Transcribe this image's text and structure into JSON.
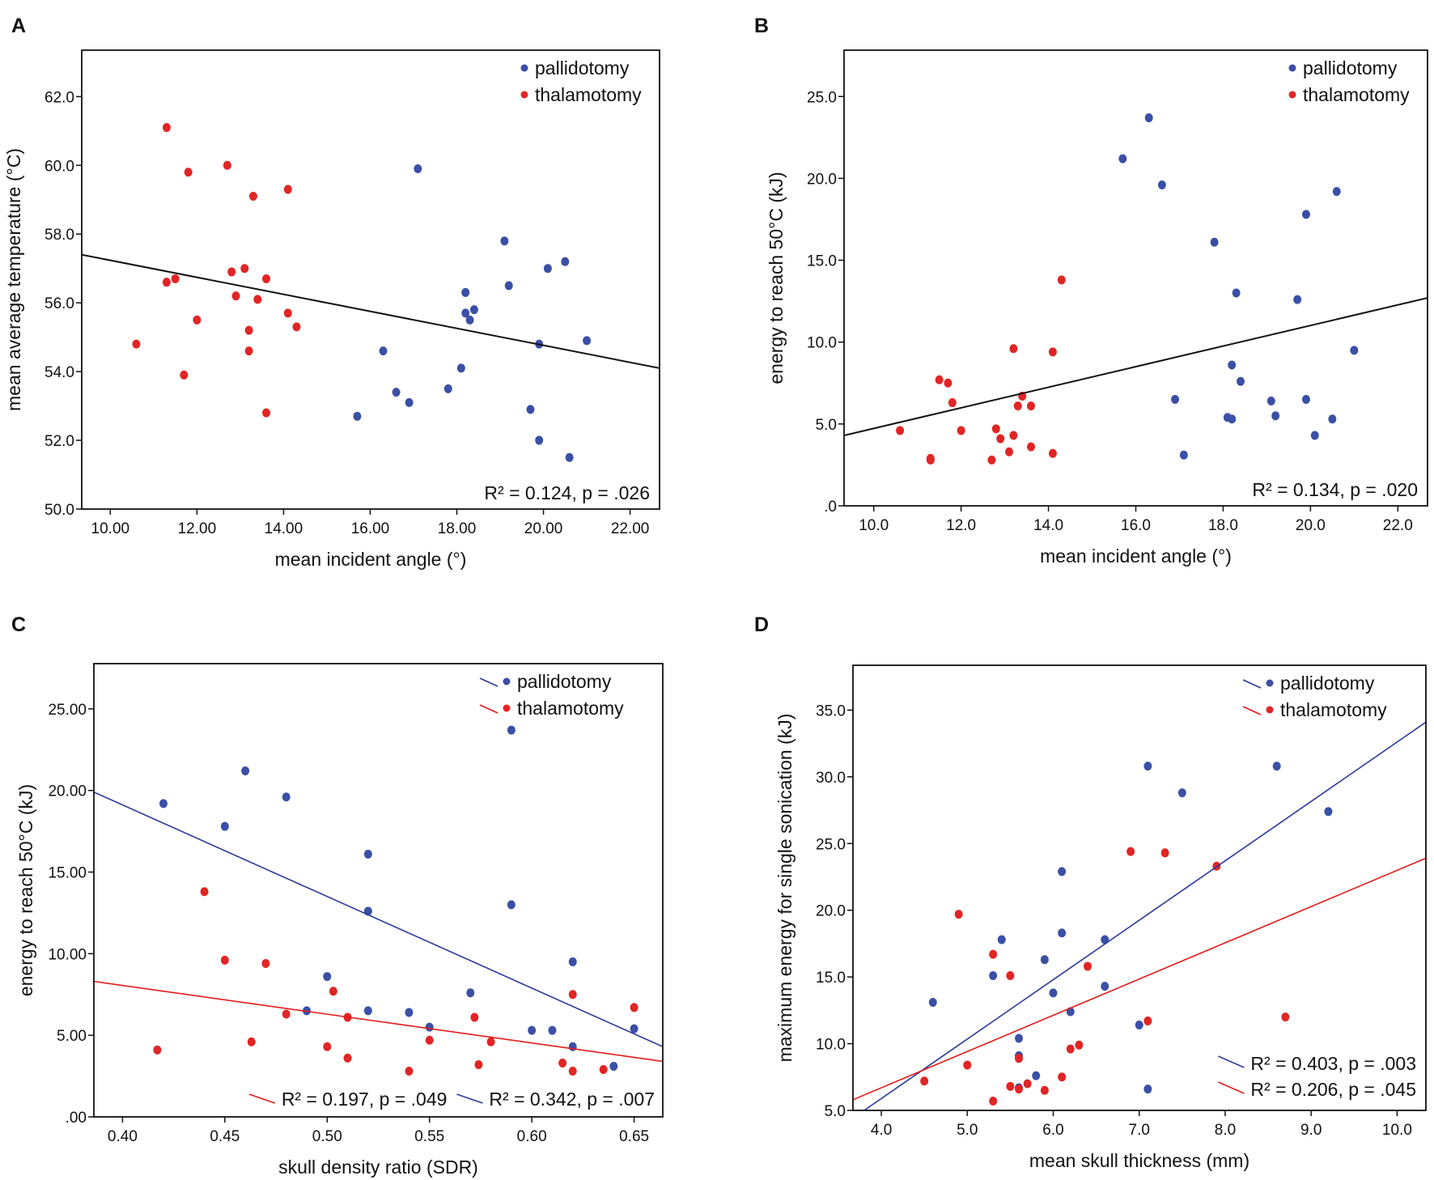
{
  "colors": {
    "pallidotomy": "#3a4fa6",
    "thalamotomy": "#e32424",
    "fit": "#111111",
    "blue_line": "#2b3a9a",
    "red_line": "#e41a1a"
  },
  "chart_data": [
    {
      "panel": "A",
      "type": "scatter",
      "xlabel": "mean incident angle (°)",
      "ylabel": "mean average temperature (°C)",
      "xlim": [
        9.34,
        22.68
      ],
      "ylim": [
        50,
        63.35
      ],
      "xticks": [
        10,
        12,
        14,
        16,
        18,
        20,
        22
      ],
      "xtick_labels": [
        "10.00",
        "12.00",
        "14.00",
        "16.00",
        "18.00",
        "20.00",
        "22.00"
      ],
      "yticks": [
        50,
        52,
        54,
        56,
        58,
        60,
        62
      ],
      "ytick_labels": [
        "50.0",
        "52.0",
        "54.0",
        "56.0",
        "58.0",
        "60.0",
        "62.0"
      ],
      "legend": [
        {
          "label": "pallidotomy",
          "series": "pallidotomy",
          "line": false
        },
        {
          "label": "thalamotomy",
          "series": "thalamotomy",
          "line": false
        }
      ],
      "series": [
        {
          "name": "pallidotomy",
          "points": [
            [
              17.1,
              59.9
            ],
            [
              19.1,
              57.8
            ],
            [
              20.5,
              57.2
            ],
            [
              20.1,
              57.0
            ],
            [
              19.2,
              56.5
            ],
            [
              18.2,
              56.3
            ],
            [
              18.2,
              55.7
            ],
            [
              18.4,
              55.8
            ],
            [
              18.3,
              55.5
            ],
            [
              21.0,
              54.9
            ],
            [
              19.9,
              54.8
            ],
            [
              16.3,
              54.6
            ],
            [
              18.1,
              54.1
            ],
            [
              16.6,
              53.4
            ],
            [
              17.8,
              53.5
            ],
            [
              16.9,
              53.1
            ],
            [
              15.7,
              52.7
            ],
            [
              19.7,
              52.9
            ],
            [
              19.9,
              52.0
            ],
            [
              20.6,
              51.5
            ]
          ]
        },
        {
          "name": "thalamotomy",
          "points": [
            [
              11.3,
              61.1
            ],
            [
              11.8,
              59.8
            ],
            [
              12.7,
              60.0
            ],
            [
              13.3,
              59.1
            ],
            [
              14.1,
              59.3
            ],
            [
              12.8,
              56.9
            ],
            [
              13.1,
              57.0
            ],
            [
              13.6,
              56.7
            ],
            [
              11.3,
              56.6
            ],
            [
              11.5,
              56.7
            ],
            [
              12.9,
              56.2
            ],
            [
              13.4,
              56.1
            ],
            [
              12.0,
              55.5
            ],
            [
              14.1,
              55.7
            ],
            [
              14.3,
              55.3
            ],
            [
              13.2,
              55.2
            ],
            [
              10.6,
              54.8
            ],
            [
              13.2,
              54.6
            ],
            [
              11.7,
              53.9
            ],
            [
              13.6,
              52.8
            ]
          ]
        }
      ],
      "fits": [
        {
          "color": "fit",
          "from": [
            9.34,
            57.4
          ],
          "to": [
            22.68,
            54.1
          ]
        }
      ],
      "stats": [
        {
          "text": "R² = 0.124, p = .026",
          "color": null
        }
      ],
      "stats_layout": "single"
    },
    {
      "panel": "B",
      "type": "scatter",
      "xlabel": "mean incident angle (°)",
      "ylabel": "energy to reach 50°C (kJ)",
      "xlim": [
        9.32,
        22.68
      ],
      "ylim": [
        0,
        27.83
      ],
      "xticks": [
        10,
        12,
        14,
        16,
        18,
        20,
        22
      ],
      "xtick_labels": [
        "10.0",
        "12.0",
        "14.0",
        "16.0",
        "18.0",
        "20.0",
        "22.0"
      ],
      "yticks": [
        0,
        5,
        10,
        15,
        20,
        25
      ],
      "ytick_labels": [
        ".0",
        "5.0",
        "10.0",
        "15.0",
        "20.0",
        "25.0"
      ],
      "legend": [
        {
          "label": "pallidotomy",
          "series": "pallidotomy",
          "line": false
        },
        {
          "label": "thalamotomy",
          "series": "thalamotomy",
          "line": false
        }
      ],
      "series": [
        {
          "name": "pallidotomy",
          "points": [
            [
              15.7,
              21.2
            ],
            [
              16.3,
              23.7
            ],
            [
              16.6,
              19.6
            ],
            [
              16.9,
              6.5
            ],
            [
              17.1,
              3.1
            ],
            [
              17.8,
              16.1
            ],
            [
              18.1,
              5.4
            ],
            [
              18.2,
              5.3
            ],
            [
              18.2,
              8.6
            ],
            [
              18.3,
              13.0
            ],
            [
              18.4,
              7.6
            ],
            [
              19.1,
              6.4
            ],
            [
              19.2,
              5.5
            ],
            [
              19.7,
              12.6
            ],
            [
              19.9,
              17.8
            ],
            [
              19.9,
              6.5
            ],
            [
              20.1,
              4.3
            ],
            [
              20.5,
              5.3
            ],
            [
              20.6,
              19.2
            ],
            [
              21.0,
              9.5
            ]
          ]
        },
        {
          "name": "thalamotomy",
          "points": [
            [
              10.6,
              4.6
            ],
            [
              11.3,
              2.9
            ],
            [
              11.3,
              2.8
            ],
            [
              11.5,
              7.7
            ],
            [
              11.7,
              7.5
            ],
            [
              11.8,
              6.3
            ],
            [
              12.0,
              4.6
            ],
            [
              12.7,
              2.8
            ],
            [
              12.8,
              4.7
            ],
            [
              12.9,
              4.1
            ],
            [
              13.1,
              3.3
            ],
            [
              13.2,
              9.6
            ],
            [
              13.2,
              4.3
            ],
            [
              13.3,
              6.1
            ],
            [
              13.4,
              6.7
            ],
            [
              13.6,
              6.1
            ],
            [
              13.6,
              3.6
            ],
            [
              14.1,
              9.4
            ],
            [
              14.1,
              3.2
            ],
            [
              14.3,
              13.8
            ]
          ]
        }
      ],
      "fits": [
        {
          "color": "fit",
          "from": [
            9.32,
            4.3
          ],
          "to": [
            22.68,
            12.7
          ]
        }
      ],
      "stats": [
        {
          "text": "R² = 0.134, p = .020",
          "color": null
        }
      ],
      "stats_layout": "single"
    },
    {
      "panel": "C",
      "type": "scatter",
      "xlabel": "skull density ratio (SDR)",
      "ylabel": "energy to reach 50°C (kJ)",
      "xlim": [
        0.386,
        0.664
      ],
      "ylim": [
        0,
        27.77
      ],
      "xticks": [
        0.4,
        0.45,
        0.5,
        0.55,
        0.6,
        0.65
      ],
      "xtick_labels": [
        "0.40",
        "0.45",
        "0.50",
        "0.55",
        "0.60",
        "0.65"
      ],
      "yticks": [
        0,
        5,
        10,
        15,
        20,
        25
      ],
      "ytick_labels": [
        ".00",
        "5.00",
        "10.00",
        "15.00",
        "20.00",
        "25.00"
      ],
      "legend": [
        {
          "label": "pallidotomy",
          "series": "pallidotomy",
          "line": true,
          "line_color": "blue_line"
        },
        {
          "label": "thalamotomy",
          "series": "thalamotomy",
          "line": true,
          "line_color": "red_line"
        }
      ],
      "series": [
        {
          "name": "pallidotomy",
          "points": [
            [
              0.42,
              19.2
            ],
            [
              0.45,
              17.8
            ],
            [
              0.46,
              21.2
            ],
            [
              0.48,
              19.6
            ],
            [
              0.49,
              6.5
            ],
            [
              0.5,
              8.6
            ],
            [
              0.52,
              16.1
            ],
            [
              0.52,
              12.6
            ],
            [
              0.52,
              6.5
            ],
            [
              0.54,
              6.4
            ],
            [
              0.55,
              5.5
            ],
            [
              0.57,
              7.6
            ],
            [
              0.59,
              23.7
            ],
            [
              0.59,
              13.0
            ],
            [
              0.6,
              5.3
            ],
            [
              0.61,
              5.3
            ],
            [
              0.62,
              9.5
            ],
            [
              0.62,
              4.3
            ],
            [
              0.64,
              3.1
            ],
            [
              0.65,
              5.4
            ]
          ]
        },
        {
          "name": "thalamotomy",
          "points": [
            [
              0.417,
              4.1
            ],
            [
              0.44,
              13.8
            ],
            [
              0.45,
              9.6
            ],
            [
              0.463,
              4.6
            ],
            [
              0.47,
              9.4
            ],
            [
              0.48,
              6.3
            ],
            [
              0.5,
              4.3
            ],
            [
              0.503,
              7.7
            ],
            [
              0.51,
              6.1
            ],
            [
              0.51,
              3.6
            ],
            [
              0.54,
              2.8
            ],
            [
              0.55,
              4.7
            ],
            [
              0.572,
              6.1
            ],
            [
              0.574,
              3.2
            ],
            [
              0.58,
              4.6
            ],
            [
              0.615,
              3.3
            ],
            [
              0.62,
              7.5
            ],
            [
              0.62,
              2.8
            ],
            [
              0.635,
              2.9
            ],
            [
              0.65,
              6.7
            ]
          ]
        }
      ],
      "fits": [
        {
          "color": "blue_line",
          "from": [
            0.386,
            19.9
          ],
          "to": [
            0.664,
            4.3
          ]
        },
        {
          "color": "red_line",
          "from": [
            0.386,
            8.3
          ],
          "to": [
            0.664,
            3.4
          ]
        }
      ],
      "stats": [
        {
          "text": "R² = 0.197, p = .049",
          "color": "red_line"
        },
        {
          "text": "R² = 0.342, p = .007",
          "color": "blue_line"
        }
      ],
      "stats_layout": "row"
    },
    {
      "panel": "D",
      "type": "scatter",
      "xlabel": "mean skull thickness (mm)",
      "ylabel": "maximum energy for single sonication (kJ)",
      "xlim": [
        3.67,
        10.335
      ],
      "ylim": [
        5,
        38.36
      ],
      "xticks": [
        4,
        5,
        6,
        7,
        8,
        9,
        10
      ],
      "xtick_labels": [
        "4.0",
        "5.0",
        "6.0",
        "7.0",
        "8.0",
        "9.0",
        "10.0"
      ],
      "yticks": [
        5,
        10,
        15,
        20,
        25,
        30,
        35
      ],
      "ytick_labels": [
        "5.0",
        "10.0",
        "15.0",
        "20.0",
        "25.0",
        "30.0",
        "35.0"
      ],
      "legend": [
        {
          "label": "pallidotomy",
          "series": "pallidotomy",
          "line": true,
          "line_color": "blue_line"
        },
        {
          "label": "thalamotomy",
          "series": "thalamotomy",
          "line": true,
          "line_color": "red_line"
        }
      ],
      "series": [
        {
          "name": "pallidotomy",
          "points": [
            [
              4.6,
              13.1
            ],
            [
              5.3,
              15.1
            ],
            [
              5.4,
              17.8
            ],
            [
              5.6,
              10.4
            ],
            [
              5.6,
              9.1
            ],
            [
              5.6,
              6.7
            ],
            [
              5.8,
              7.6
            ],
            [
              5.9,
              16.3
            ],
            [
              6.0,
              13.8
            ],
            [
              6.1,
              22.9
            ],
            [
              6.1,
              18.3
            ],
            [
              6.2,
              12.4
            ],
            [
              6.6,
              17.8
            ],
            [
              6.6,
              14.3
            ],
            [
              7.0,
              11.4
            ],
            [
              7.1,
              30.8
            ],
            [
              7.1,
              6.6
            ],
            [
              7.5,
              28.8
            ],
            [
              8.6,
              30.8
            ],
            [
              9.2,
              27.4
            ]
          ]
        },
        {
          "name": "thalamotomy",
          "points": [
            [
              4.5,
              7.2
            ],
            [
              4.9,
              19.7
            ],
            [
              5.0,
              8.4
            ],
            [
              5.3,
              16.7
            ],
            [
              5.3,
              5.7
            ],
            [
              5.5,
              15.1
            ],
            [
              5.5,
              6.8
            ],
            [
              5.6,
              8.9
            ],
            [
              5.6,
              6.6
            ],
            [
              5.7,
              7.0
            ],
            [
              5.9,
              6.5
            ],
            [
              6.1,
              7.5
            ],
            [
              6.2,
              9.6
            ],
            [
              6.3,
              9.9
            ],
            [
              6.4,
              15.8
            ],
            [
              6.9,
              24.4
            ],
            [
              7.1,
              11.7
            ],
            [
              7.3,
              24.3
            ],
            [
              7.9,
              23.3
            ],
            [
              8.7,
              12.0
            ]
          ]
        }
      ],
      "fits": [
        {
          "color": "blue_line",
          "from": [
            3.8,
            5.0
          ],
          "to": [
            10.335,
            34.1
          ]
        },
        {
          "color": "red_line",
          "from": [
            3.67,
            5.8
          ],
          "to": [
            10.335,
            23.9
          ]
        }
      ],
      "stats": [
        {
          "text": "R² = 0.403, p = .003",
          "color": "blue_line"
        },
        {
          "text": "R² = 0.206, p = .045",
          "color": "red_line"
        }
      ],
      "stats_layout": "stack"
    }
  ]
}
